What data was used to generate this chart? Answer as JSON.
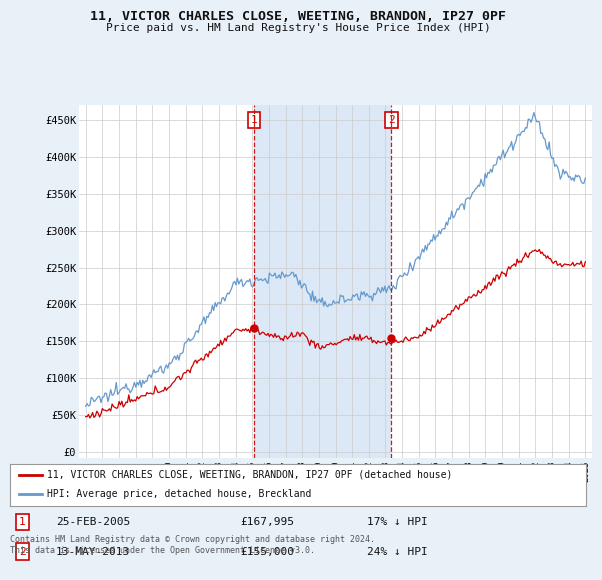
{
  "title": "11, VICTOR CHARLES CLOSE, WEETING, BRANDON, IP27 0PF",
  "subtitle": "Price paid vs. HM Land Registry's House Price Index (HPI)",
  "footnote": "Contains HM Land Registry data © Crown copyright and database right 2024.\nThis data is licensed under the Open Government Licence v3.0.",
  "legend_line1": "11, VICTOR CHARLES CLOSE, WEETING, BRANDON, IP27 0PF (detached house)",
  "legend_line2": "HPI: Average price, detached house, Breckland",
  "sale1_date": "25-FEB-2005",
  "sale1_price": "£167,995",
  "sale1_hpi": "17% ↓ HPI",
  "sale2_date": "13-MAY-2013",
  "sale2_price": "£155,000",
  "sale2_hpi": "24% ↓ HPI",
  "red_line_color": "#cc0000",
  "blue_line_color": "#6699cc",
  "shade_color": "#dce8f5",
  "background_color": "#e8f0f8",
  "plot_bg_color": "#ffffff",
  "vline_color": "#cc0000",
  "ytick_labels": [
    "£0",
    "£50K",
    "£100K",
    "£150K",
    "£200K",
    "£250K",
    "£300K",
    "£350K",
    "£400K",
    "£450K"
  ],
  "ytick_values": [
    0,
    50000,
    100000,
    150000,
    200000,
    250000,
    300000,
    350000,
    400000,
    450000
  ],
  "sale1_year": 2005.12,
  "sale1_value": 167995,
  "sale2_year": 2013.36,
  "sale2_value": 155000,
  "xstart": 1995,
  "xend": 2025
}
